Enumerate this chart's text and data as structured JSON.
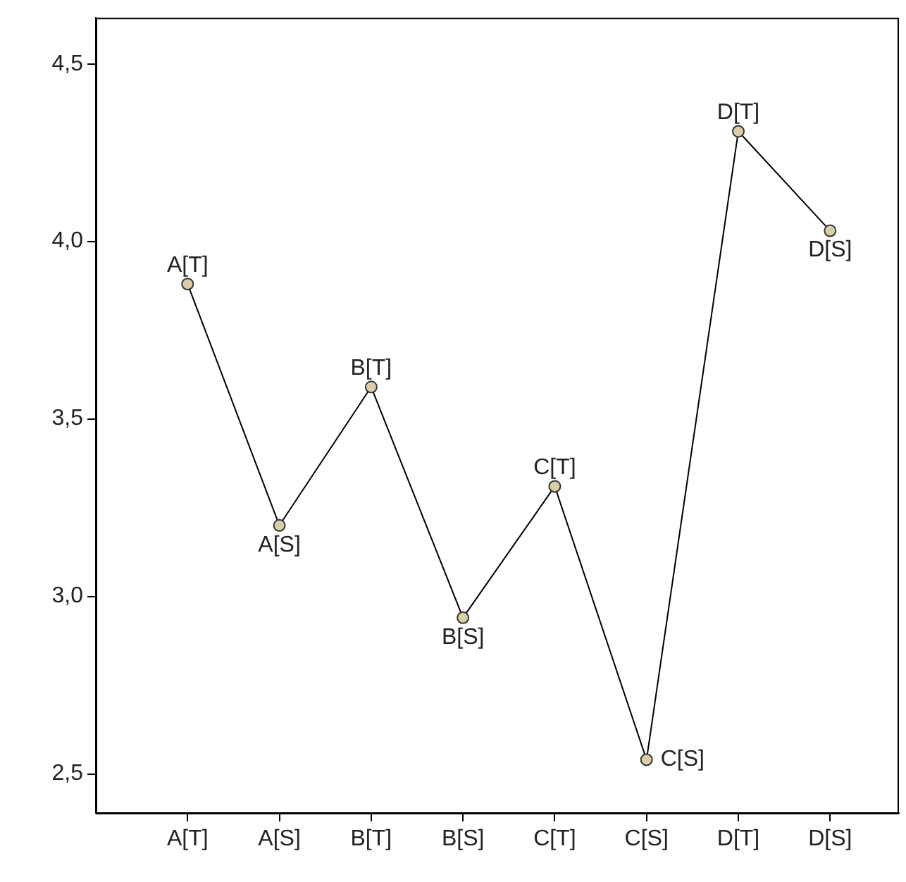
{
  "chart_data": {
    "type": "line",
    "categories": [
      "A[T]",
      "A[S]",
      "B[T]",
      "B[S]",
      "C[T]",
      "C[S]",
      "D[T]",
      "D[S]"
    ],
    "series": [
      {
        "color": "#000000",
        "values": [
          3.88,
          3.2,
          3.59,
          2.94,
          3.31,
          2.54,
          4.31,
          4.03
        ]
      }
    ],
    "ylim": [
      2.39,
      4.63
    ],
    "yticks": [
      {
        "value": 2.5,
        "label": "2,5"
      },
      {
        "value": 3,
        "label": "3,0"
      },
      {
        "value": 3.5,
        "label": "3,5"
      },
      {
        "value": 4,
        "label": "4,0"
      },
      {
        "value": 4.5,
        "label": "4,5"
      }
    ],
    "annotations": [
      {
        "text": "A[T]",
        "x": "A[T]",
        "y": 3.88
      },
      {
        "text": "A[S]",
        "x": "A[S]",
        "y": 3.2
      },
      {
        "text": "B[T]",
        "x": "B[T]",
        "y": 3.59
      },
      {
        "text": "B[S]",
        "x": "B[S]",
        "y": 2.94
      },
      {
        "text": "C[T]",
        "x": "C[T]",
        "y": 3.31
      },
      {
        "text": "C[S]",
        "x": "C[S]",
        "y": 2.54
      },
      {
        "text": "D[T]",
        "x": "D[T]",
        "y": 4.31
      },
      {
        "text": "D[S]",
        "x": "D[S]",
        "y": 4.03
      }
    ],
    "grid": false,
    "legend": false,
    "marker": "circle",
    "line_style": "solid"
  }
}
